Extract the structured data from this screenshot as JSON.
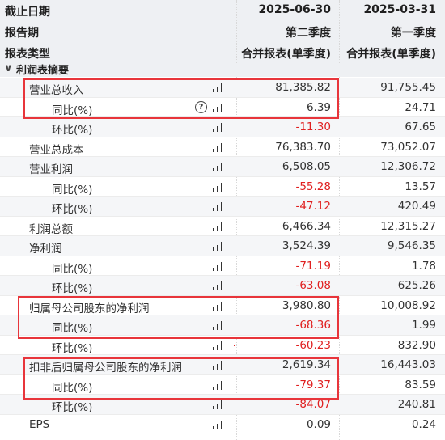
{
  "header": {
    "rows": [
      {
        "label": "截止日期",
        "col1": "2025-06-30",
        "col2": "2025-03-31"
      },
      {
        "label": "报告期",
        "col1": "第二季度",
        "col2": "第一季度"
      },
      {
        "label": "报表类型",
        "col1": "合并报表(单季度)",
        "col2": "合并报表(单季度)"
      }
    ]
  },
  "section": {
    "chevron": "chevron-down-icon",
    "title": "利润表摘要"
  },
  "rows": [
    {
      "label": "营业总收入",
      "v1": "81,385.82",
      "v2": "91,755.45",
      "neg": false,
      "indent": 1,
      "help": false
    },
    {
      "label": "同比(%)",
      "v1": "6.39",
      "v2": "24.71",
      "neg": false,
      "indent": 2,
      "help": true
    },
    {
      "label": "环比(%)",
      "v1": "-11.30",
      "v2": "67.65",
      "neg": true,
      "indent": 2,
      "help": false
    },
    {
      "label": "营业总成本",
      "v1": "76,383.70",
      "v2": "73,052.07",
      "neg": false,
      "indent": 1,
      "help": false
    },
    {
      "label": "营业利润",
      "v1": "6,508.05",
      "v2": "12,306.72",
      "neg": false,
      "indent": 1,
      "help": false
    },
    {
      "label": "同比(%)",
      "v1": "-55.28",
      "v2": "13.57",
      "neg": true,
      "indent": 2,
      "help": false
    },
    {
      "label": "环比(%)",
      "v1": "-47.12",
      "v2": "420.49",
      "neg": true,
      "indent": 2,
      "help": false
    },
    {
      "label": "利润总额",
      "v1": "6,466.34",
      "v2": "12,315.27",
      "neg": false,
      "indent": 1,
      "help": false
    },
    {
      "label": "净利润",
      "v1": "3,524.39",
      "v2": "9,546.35",
      "neg": false,
      "indent": 1,
      "help": false
    },
    {
      "label": "同比(%)",
      "v1": "-71.19",
      "v2": "1.78",
      "neg": true,
      "indent": 2,
      "help": false
    },
    {
      "label": "环比(%)",
      "v1": "-63.08",
      "v2": "625.26",
      "neg": true,
      "indent": 2,
      "help": false
    },
    {
      "label": "归属母公司股东的净利润",
      "v1": "3,980.80",
      "v2": "10,008.92",
      "neg": false,
      "indent": 1,
      "help": false
    },
    {
      "label": "同比(%)",
      "v1": "-68.36",
      "v2": "1.99",
      "neg": true,
      "indent": 2,
      "help": false
    },
    {
      "label": "环比(%)",
      "v1": "-60.23",
      "v2": "832.90",
      "neg": true,
      "indent": 2,
      "help": false
    },
    {
      "label": "扣非后归属母公司股东的净利润",
      "v1": "2,619.34",
      "v2": "16,443.03",
      "neg": false,
      "indent": 1,
      "help": false
    },
    {
      "label": "同比(%)",
      "v1": "-79.37",
      "v2": "83.59",
      "neg": true,
      "indent": 2,
      "help": false
    },
    {
      "label": "环比(%)",
      "v1": "-84.07",
      "v2": "240.81",
      "neg": true,
      "indent": 2,
      "help": false
    },
    {
      "label": "EPS",
      "v1": "0.09",
      "v2": "0.24",
      "neg": false,
      "indent": 1,
      "help": false
    }
  ],
  "icons": {
    "chart": "bar-chart-icon",
    "help": "help-circle-icon"
  },
  "colors": {
    "negative": "#e02020",
    "highlight_box": "#e8353b",
    "header_bg": "#eef0f3"
  }
}
